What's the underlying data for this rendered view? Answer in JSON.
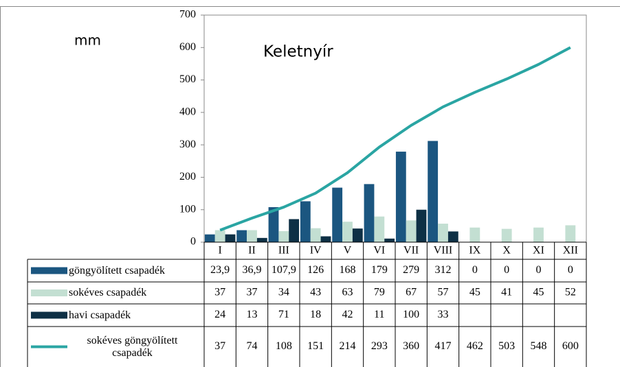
{
  "chart_data": {
    "type": "bar",
    "title": "Keletnyír",
    "y_label": "mm",
    "categories": [
      "I",
      "II",
      "III",
      "IV",
      "V",
      "VI",
      "VII",
      "VIII",
      "IX",
      "X",
      "XI",
      "XII"
    ],
    "ylim": [
      0,
      700
    ],
    "yticks": [
      0,
      100,
      200,
      300,
      400,
      500,
      600,
      700
    ],
    "series": [
      {
        "name": "göngyölített csapadék",
        "type": "bar",
        "color": "#1b5680",
        "values": [
          23.9,
          36.9,
          107.9,
          126,
          168,
          179,
          279,
          312,
          0,
          0,
          0,
          0
        ],
        "value_labels": [
          "23,9",
          "36,9",
          "107,9",
          "126",
          "168",
          "179",
          "279",
          "312",
          "0",
          "0",
          "0",
          "0"
        ]
      },
      {
        "name": "sokéves csapadék",
        "type": "bar",
        "color": "#c3dfd2",
        "values": [
          37,
          37,
          34,
          43,
          63,
          79,
          67,
          57,
          45,
          41,
          45,
          52
        ]
      },
      {
        "name": "havi csapadék",
        "type": "bar",
        "color": "#0e3045",
        "values": [
          24,
          13,
          71,
          18,
          42,
          11,
          100,
          33,
          null,
          null,
          null,
          null
        ]
      },
      {
        "name": "sokéves göngyölített csapadék",
        "type": "line",
        "color": "#2aa5a3",
        "values": [
          37,
          74,
          108,
          151,
          214,
          293,
          360,
          417,
          462,
          503,
          548,
          600
        ]
      }
    ]
  }
}
